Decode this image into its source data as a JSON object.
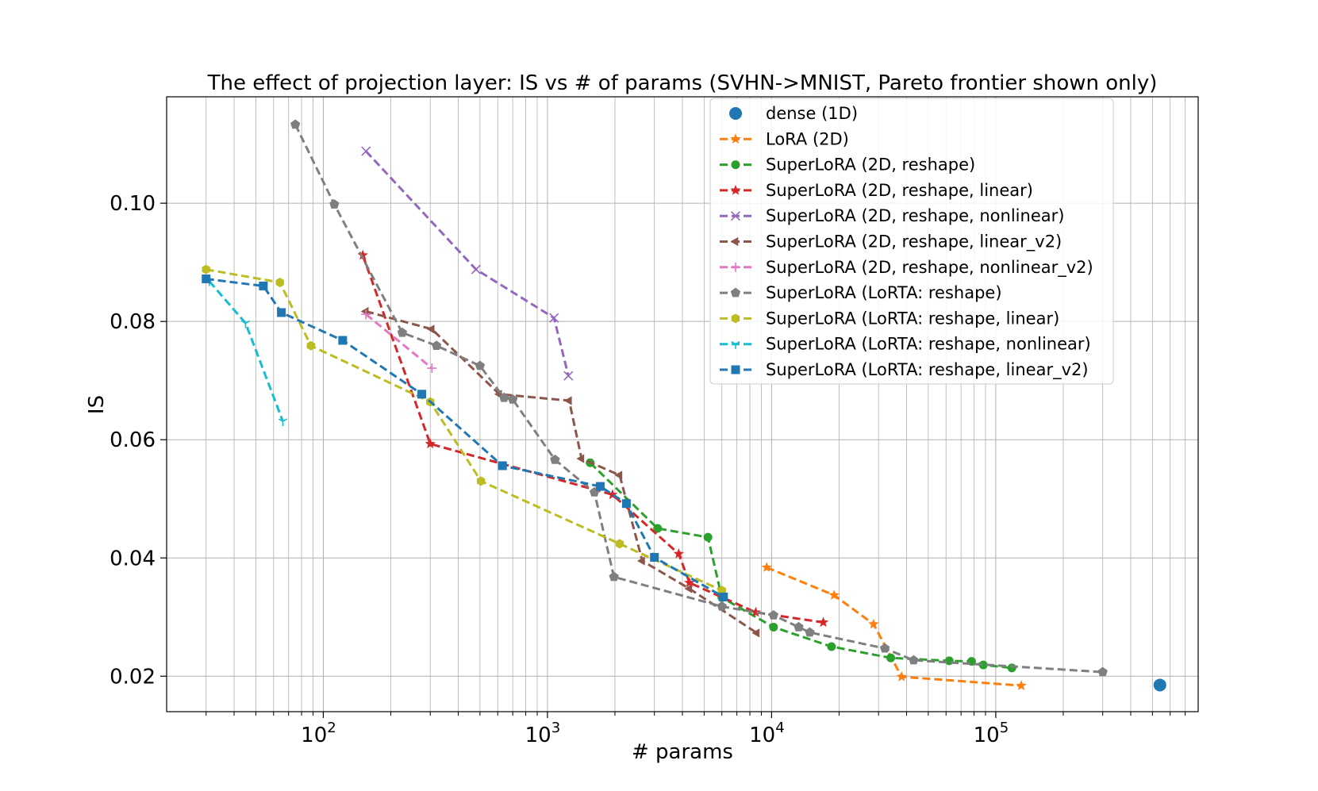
{
  "chart_data": {
    "type": "scatter",
    "title": "The effect of projection layer: IS vs # of params (SVHN->MNIST, Pareto frontier shown only)",
    "xlabel": "# params",
    "ylabel": "IS",
    "xscale": "log",
    "xlim": [
      20,
      800000
    ],
    "ylim": [
      0.014,
      0.118
    ],
    "x_ticks": [
      {
        "value": 100,
        "base": "10",
        "exp": "2"
      },
      {
        "value": 1000,
        "base": "10",
        "exp": "3"
      },
      {
        "value": 10000,
        "base": "10",
        "exp": "4"
      },
      {
        "value": 100000,
        "base": "10",
        "exp": "5"
      }
    ],
    "y_ticks": [
      {
        "value": 0.02,
        "label": "0.02"
      },
      {
        "value": 0.04,
        "label": "0.04"
      },
      {
        "value": 0.06,
        "label": "0.06"
      },
      {
        "value": 0.08,
        "label": "0.08"
      },
      {
        "value": 0.1,
        "label": "0.10"
      }
    ],
    "grid": true,
    "legend_position": "top-right",
    "series": [
      {
        "name": "dense (1D)",
        "color": "#1f77b4",
        "marker": "circle-large",
        "dashed": false,
        "points": [
          [
            540000,
            0.0185
          ]
        ]
      },
      {
        "name": "LoRA (2D)",
        "color": "#ff7f0e",
        "marker": "star",
        "dashed": true,
        "points": [
          [
            9500,
            0.0384
          ],
          [
            19000,
            0.0337
          ],
          [
            28500,
            0.0288
          ],
          [
            38000,
            0.0199
          ],
          [
            130000,
            0.0184
          ]
        ]
      },
      {
        "name": "SuperLoRA (2D, reshape)",
        "color": "#2ca02c",
        "marker": "circle",
        "dashed": true,
        "points": [
          [
            1550,
            0.0561
          ],
          [
            3100,
            0.045
          ],
          [
            5200,
            0.0435
          ],
          [
            6000,
            0.0333
          ],
          [
            10200,
            0.0283
          ],
          [
            18500,
            0.025
          ],
          [
            34000,
            0.0231
          ],
          [
            62000,
            0.0226
          ],
          [
            78000,
            0.0225
          ],
          [
            88000,
            0.0219
          ],
          [
            118000,
            0.0214
          ]
        ]
      },
      {
        "name": "SuperLoRA (2D, reshape, linear)",
        "color": "#d62728",
        "marker": "star",
        "dashed": true,
        "points": [
          [
            150,
            0.0912
          ],
          [
            300,
            0.0593
          ],
          [
            1950,
            0.0507
          ],
          [
            3850,
            0.0407
          ],
          [
            4300,
            0.0358
          ],
          [
            8500,
            0.0308
          ],
          [
            17000,
            0.0291
          ]
        ]
      },
      {
        "name": "SuperLoRA (2D, reshape, nonlinear)",
        "color": "#9467bd",
        "marker": "x",
        "dashed": true,
        "points": [
          [
            155,
            0.1088
          ],
          [
            480,
            0.0888
          ],
          [
            1070,
            0.0806
          ],
          [
            1240,
            0.0708
          ]
        ]
      },
      {
        "name": "SuperLoRA (2D, reshape, linear_v2)",
        "color": "#8c564b",
        "marker": "triangle-left",
        "dashed": true,
        "points": [
          [
            155,
            0.0817
          ],
          [
            305,
            0.0787
          ],
          [
            610,
            0.0677
          ],
          [
            1250,
            0.0666
          ],
          [
            1420,
            0.0568
          ],
          [
            2100,
            0.054
          ],
          [
            2650,
            0.0395
          ],
          [
            4300,
            0.0348
          ],
          [
            8600,
            0.0273
          ]
        ]
      },
      {
        "name": "SuperLoRA (2D, reshape, nonlinear_v2)",
        "color": "#e377c2",
        "marker": "plus",
        "dashed": true,
        "points": [
          [
            155,
            0.0812
          ],
          [
            305,
            0.0721
          ]
        ]
      },
      {
        "name": "SuperLoRA (LoRTA: reshape)",
        "color": "#7f7f7f",
        "marker": "pentagon",
        "dashed": true,
        "points": [
          [
            75,
            0.1133
          ],
          [
            112,
            0.0998
          ],
          [
            225,
            0.0781
          ],
          [
            320,
            0.0759
          ],
          [
            500,
            0.0725
          ],
          [
            640,
            0.0671
          ],
          [
            700,
            0.0668
          ],
          [
            1080,
            0.0566
          ],
          [
            1620,
            0.0511
          ],
          [
            1980,
            0.0368
          ],
          [
            6000,
            0.0318
          ],
          [
            10200,
            0.0303
          ],
          [
            13200,
            0.0283
          ],
          [
            14800,
            0.0274
          ],
          [
            32000,
            0.0247
          ],
          [
            43000,
            0.0227
          ],
          [
            300000,
            0.0207
          ]
        ]
      },
      {
        "name": "SuperLoRA (LoRTA: reshape, linear)",
        "color": "#bcbd22",
        "marker": "hexagon",
        "dashed": true,
        "points": [
          [
            30,
            0.0888
          ],
          [
            64,
            0.0866
          ],
          [
            88,
            0.0759
          ],
          [
            300,
            0.0664
          ],
          [
            505,
            0.053
          ],
          [
            2100,
            0.0424
          ],
          [
            6000,
            0.0345
          ]
        ]
      },
      {
        "name": "SuperLoRA (LoRTA: reshape, nonlinear)",
        "color": "#17becf",
        "marker": "tri-down",
        "dashed": true,
        "points": [
          [
            31,
            0.0868
          ],
          [
            45,
            0.0797
          ],
          [
            66,
            0.0631
          ]
        ]
      },
      {
        "name": "SuperLoRA (LoRTA: reshape, linear_v2)",
        "color": "#1f77b4",
        "marker": "square",
        "dashed": true,
        "points": [
          [
            30,
            0.0872
          ],
          [
            54,
            0.086
          ],
          [
            65,
            0.0815
          ],
          [
            122,
            0.0768
          ],
          [
            275,
            0.0677
          ],
          [
            630,
            0.0556
          ],
          [
            1720,
            0.0521
          ],
          [
            2250,
            0.0492
          ],
          [
            3000,
            0.0401
          ],
          [
            6100,
            0.0334
          ]
        ]
      }
    ]
  }
}
